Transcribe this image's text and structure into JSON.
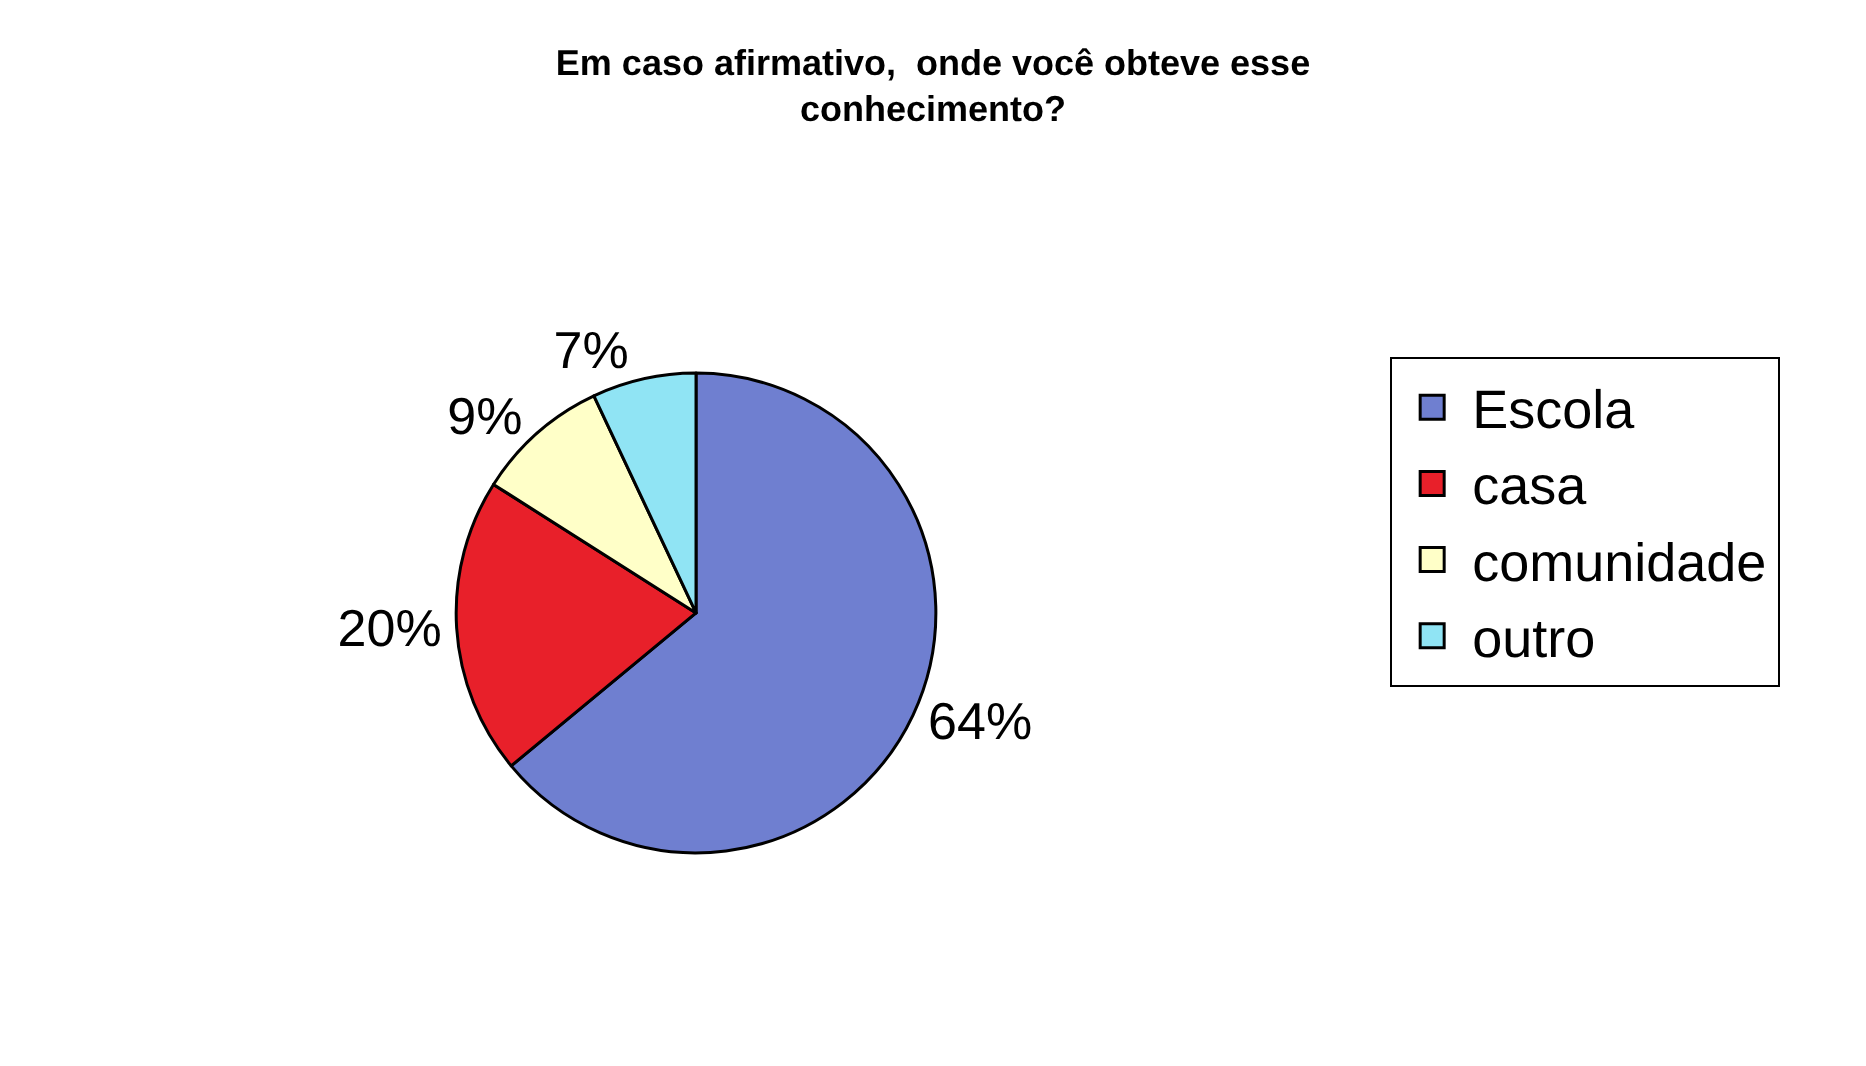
{
  "chart_data": {
    "type": "pie",
    "title": "Em caso afirmativo,  onde você obteve esse conhecimento?",
    "categories": [
      "Escola",
      "casa",
      "comunidade",
      "outro"
    ],
    "values": [
      64,
      20,
      9,
      7
    ],
    "value_labels": [
      "64%",
      "20%",
      "9%",
      "7%"
    ],
    "colors": [
      "#6f7fd0",
      "#e8202a",
      "#ffffc8",
      "#90e4f4"
    ],
    "legend": "right"
  }
}
